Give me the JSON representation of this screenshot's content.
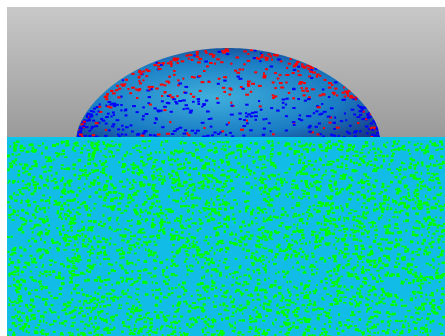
{
  "scene": {
    "background_top": "#c8c8c8",
    "background_bottom": "#9a9a9a",
    "substrate": {
      "base_color": "#11bde7",
      "particle_color": "#00ff00",
      "surface_line_color": "#0cc6ea"
    },
    "droplet": {
      "body_light": "#3fb0dc",
      "body_mid": "#1a7dc4",
      "body_dark": "#17206d",
      "base_particle_color": "#0000ff",
      "cap_particle_color": "#ff0000"
    }
  }
}
